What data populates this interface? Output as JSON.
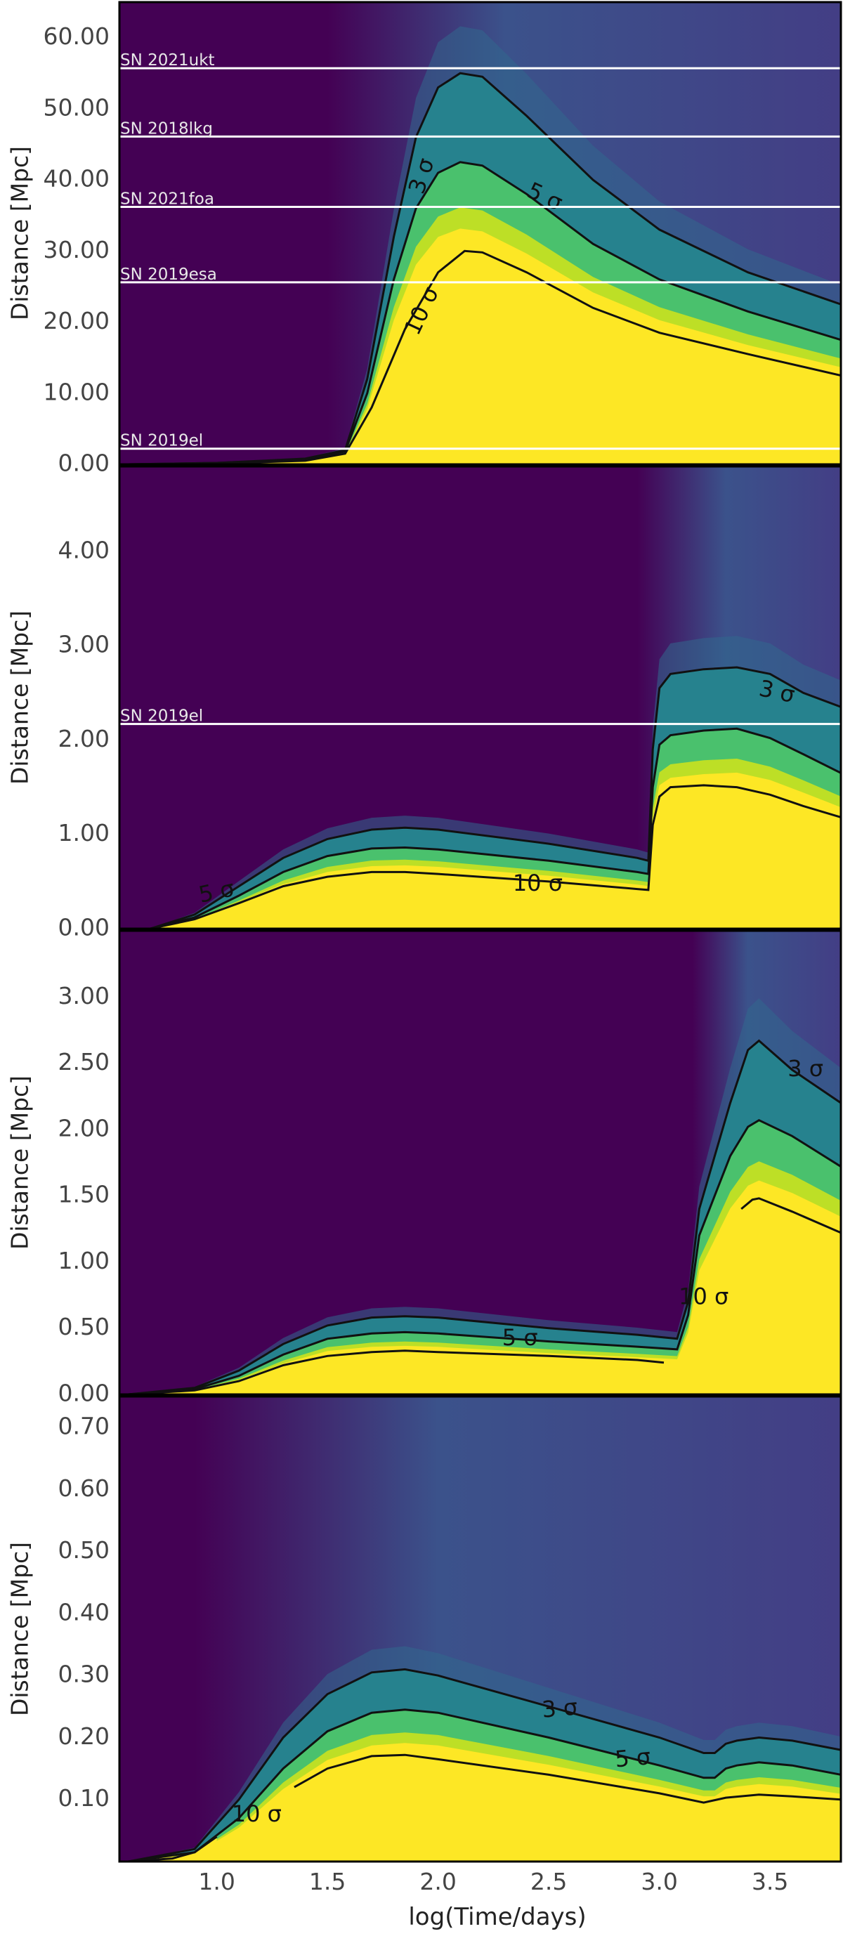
{
  "figure": {
    "xlabel": "log(Time/days)",
    "x_ticks": [
      1.0,
      1.5,
      2.0,
      2.5,
      3.0,
      3.5
    ],
    "x_tick_labels": [
      "1.0",
      "1.5",
      "2.0",
      "2.5",
      "3.0",
      "3.5"
    ],
    "colormap": [
      "#440154",
      "#3b528b",
      "#21918c",
      "#5ec962",
      "#fde725"
    ]
  },
  "chart_data": [
    {
      "type": "heatmap",
      "title": "",
      "xlabel": "log(Time/days)",
      "ylabel": "Distance [Mpc]",
      "xlim": [
        0.56,
        3.82
      ],
      "ylim": [
        0,
        65
      ],
      "y_ticks": [
        0,
        10,
        20,
        30,
        40,
        50,
        60
      ],
      "y_tick_labels": [
        "0.00",
        "10.00",
        "20.00",
        "30.00",
        "40.00",
        "50.00",
        "60.00"
      ],
      "dark_until": 1.5,
      "blend_until": 2.3,
      "far_color": "#3b528b",
      "contours": [
        {
          "label": "3 σ",
          "points": [
            [
              0.6,
              0
            ],
            [
              1.0,
              0.2
            ],
            [
              1.4,
              0.8
            ],
            [
              1.58,
              2.0
            ],
            [
              1.68,
              12
            ],
            [
              1.8,
              32
            ],
            [
              1.9,
              46
            ],
            [
              2.0,
              53
            ],
            [
              2.1,
              55
            ],
            [
              2.2,
              54.5
            ],
            [
              2.4,
              49
            ],
            [
              2.7,
              40
            ],
            [
              3.0,
              33
            ],
            [
              3.4,
              27
            ],
            [
              3.82,
              22.5
            ]
          ]
        },
        {
          "label": "5 σ",
          "points": [
            [
              0.6,
              0
            ],
            [
              1.0,
              0.2
            ],
            [
              1.4,
              0.7
            ],
            [
              1.58,
              1.8
            ],
            [
              1.68,
              10
            ],
            [
              1.8,
              26
            ],
            [
              1.9,
              36
            ],
            [
              2.0,
              41
            ],
            [
              2.1,
              42.5
            ],
            [
              2.2,
              42
            ],
            [
              2.4,
              38
            ],
            [
              2.7,
              31
            ],
            [
              3.0,
              26
            ],
            [
              3.4,
              21.5
            ],
            [
              3.82,
              17.5
            ]
          ]
        },
        {
          "label": "10 σ",
          "points": [
            [
              0.6,
              0
            ],
            [
              1.0,
              0.1
            ],
            [
              1.4,
              0.5
            ],
            [
              1.58,
              1.5
            ],
            [
              1.7,
              8
            ],
            [
              1.85,
              19
            ],
            [
              2.0,
              27
            ],
            [
              2.12,
              30
            ],
            [
              2.2,
              29.8
            ],
            [
              2.4,
              27
            ],
            [
              2.7,
              22
            ],
            [
              3.0,
              18.5
            ],
            [
              3.4,
              15.5
            ],
            [
              3.82,
              12.5
            ]
          ]
        }
      ],
      "contour_labels": [
        {
          "text": "3 σ",
          "x": 1.93,
          "y": 40.5,
          "angle": -72
        },
        {
          "text": "5 σ",
          "x": 2.48,
          "y": 37.5,
          "angle": 25
        },
        {
          "text": "10 σ",
          "x": 1.93,
          "y": 21.5,
          "angle": -65
        }
      ],
      "supernovae": [
        {
          "name": "SN 2021ukt",
          "distance": 55.7
        },
        {
          "name": "SN 2018lkg",
          "distance": 46.1
        },
        {
          "name": "SN 2021foa",
          "distance": 36.2
        },
        {
          "name": "SN 2019esa",
          "distance": 25.6
        },
        {
          "name": "SN 2019el",
          "distance": 2.2
        }
      ]
    },
    {
      "type": "heatmap",
      "title": "",
      "xlabel": "log(Time/days)",
      "ylabel": "Distance [Mpc]",
      "xlim": [
        0.56,
        3.82
      ],
      "ylim": [
        0,
        4.9
      ],
      "y_ticks": [
        0,
        1,
        2,
        3,
        4
      ],
      "y_tick_labels": [
        "0.00",
        "1.00",
        "2.00",
        "3.00",
        "4.00"
      ],
      "dark_until": 2.9,
      "blend_until": 3.3,
      "far_color": "#3b528b",
      "contours": [
        {
          "label": "3 σ",
          "points": [
            [
              0.7,
              0
            ],
            [
              0.9,
              0.15
            ],
            [
              1.1,
              0.45
            ],
            [
              1.3,
              0.75
            ],
            [
              1.5,
              0.95
            ],
            [
              1.7,
              1.05
            ],
            [
              1.85,
              1.07
            ],
            [
              2.0,
              1.05
            ],
            [
              2.5,
              0.9
            ],
            [
              2.9,
              0.75
            ],
            [
              2.95,
              0.72
            ],
            [
              2.97,
              1.9
            ],
            [
              3.0,
              2.55
            ],
            [
              3.05,
              2.7
            ],
            [
              3.2,
              2.75
            ],
            [
              3.35,
              2.77
            ],
            [
              3.5,
              2.7
            ],
            [
              3.65,
              2.5
            ],
            [
              3.82,
              2.35
            ]
          ]
        },
        {
          "label": "5 σ",
          "points": [
            [
              0.7,
              0
            ],
            [
              0.9,
              0.12
            ],
            [
              1.1,
              0.35
            ],
            [
              1.3,
              0.6
            ],
            [
              1.5,
              0.77
            ],
            [
              1.7,
              0.85
            ],
            [
              1.85,
              0.86
            ],
            [
              2.0,
              0.84
            ],
            [
              2.5,
              0.72
            ],
            [
              2.9,
              0.6
            ],
            [
              2.95,
              0.58
            ],
            [
              2.97,
              1.5
            ],
            [
              3.0,
              1.95
            ],
            [
              3.05,
              2.05
            ],
            [
              3.2,
              2.1
            ],
            [
              3.35,
              2.12
            ],
            [
              3.5,
              2.02
            ],
            [
              3.65,
              1.85
            ],
            [
              3.82,
              1.65
            ]
          ]
        },
        {
          "label": "10 σ",
          "points": [
            [
              0.7,
              0
            ],
            [
              0.9,
              0.1
            ],
            [
              1.1,
              0.27
            ],
            [
              1.3,
              0.45
            ],
            [
              1.5,
              0.55
            ],
            [
              1.7,
              0.6
            ],
            [
              1.85,
              0.6
            ],
            [
              2.0,
              0.58
            ],
            [
              2.5,
              0.5
            ],
            [
              2.9,
              0.42
            ],
            [
              2.95,
              0.41
            ],
            [
              2.97,
              1.1
            ],
            [
              3.0,
              1.4
            ],
            [
              3.05,
              1.5
            ],
            [
              3.2,
              1.52
            ],
            [
              3.35,
              1.5
            ],
            [
              3.5,
              1.42
            ],
            [
              3.65,
              1.3
            ],
            [
              3.82,
              1.18
            ]
          ]
        }
      ],
      "contour_labels": [
        {
          "text": "5 σ",
          "x": 1.0,
          "y": 0.38,
          "angle": -12
        },
        {
          "text": "10 σ",
          "x": 2.45,
          "y": 0.47,
          "angle": 0
        },
        {
          "text": "3 σ",
          "x": 3.53,
          "y": 2.5,
          "angle": 12
        }
      ],
      "supernovae": [
        {
          "name": "SN 2019el",
          "distance": 2.17
        }
      ]
    },
    {
      "type": "heatmap",
      "title": "",
      "xlabel": "log(Time/days)",
      "ylabel": "Distance [Mpc]",
      "xlim": [
        0.56,
        3.82
      ],
      "ylim": [
        0,
        3.5
      ],
      "y_ticks": [
        0,
        0.5,
        1.0,
        1.5,
        2.0,
        2.5,
        3.0
      ],
      "y_tick_labels": [
        "0.00",
        "0.50",
        "1.00",
        "1.50",
        "2.00",
        "2.50",
        "3.00"
      ],
      "dark_until": 3.15,
      "blend_until": 3.4,
      "far_color": "#3b528b",
      "contours": [
        {
          "label": "3 σ",
          "points": [
            [
              0.6,
              0
            ],
            [
              0.9,
              0.05
            ],
            [
              1.1,
              0.18
            ],
            [
              1.3,
              0.38
            ],
            [
              1.5,
              0.52
            ],
            [
              1.7,
              0.58
            ],
            [
              1.85,
              0.59
            ],
            [
              2.0,
              0.58
            ],
            [
              2.5,
              0.5
            ],
            [
              2.9,
              0.45
            ],
            [
              3.08,
              0.42
            ],
            [
              3.13,
              0.7
            ],
            [
              3.18,
              1.4
            ],
            [
              3.25,
              1.8
            ],
            [
              3.32,
              2.2
            ],
            [
              3.4,
              2.6
            ],
            [
              3.45,
              2.67
            ],
            [
              3.6,
              2.45
            ],
            [
              3.82,
              2.2
            ]
          ]
        },
        {
          "label": "5 σ",
          "points": [
            [
              0.6,
              0
            ],
            [
              0.9,
              0.04
            ],
            [
              1.1,
              0.14
            ],
            [
              1.3,
              0.3
            ],
            [
              1.5,
              0.42
            ],
            [
              1.7,
              0.46
            ],
            [
              1.85,
              0.47
            ],
            [
              2.0,
              0.46
            ],
            [
              2.5,
              0.4
            ],
            [
              2.9,
              0.36
            ],
            [
              3.08,
              0.34
            ],
            [
              3.13,
              0.6
            ],
            [
              3.18,
              1.2
            ],
            [
              3.25,
              1.5
            ],
            [
              3.32,
              1.8
            ],
            [
              3.4,
              2.02
            ],
            [
              3.45,
              2.07
            ],
            [
              3.6,
              1.95
            ],
            [
              3.82,
              1.72
            ]
          ]
        },
        {
          "label": "10 σ",
          "points": [
            [
              0.6,
              0
            ],
            [
              0.9,
              0.03
            ],
            [
              1.1,
              0.1
            ],
            [
              1.3,
              0.22
            ],
            [
              1.5,
              0.29
            ],
            [
              1.7,
              0.32
            ],
            [
              1.85,
              0.33
            ],
            [
              2.0,
              0.32
            ],
            [
              2.5,
              0.29
            ],
            [
              2.9,
              0.26
            ],
            [
              3.02,
              0.24
            ]
          ]
        },
        {
          "label": "10 σ",
          "points": [
            [
              3.37,
              1.4
            ],
            [
              3.42,
              1.47
            ],
            [
              3.45,
              1.48
            ],
            [
              3.6,
              1.38
            ],
            [
              3.82,
              1.22
            ]
          ]
        }
      ],
      "contour_labels": [
        {
          "text": "5 σ",
          "x": 2.37,
          "y": 0.42,
          "angle": 0
        },
        {
          "text": "10 σ",
          "x": 3.2,
          "y": 0.73,
          "angle": 0
        },
        {
          "text": "3 σ",
          "x": 3.66,
          "y": 2.45,
          "angle": 0
        }
      ],
      "supernovae": []
    },
    {
      "type": "heatmap",
      "title": "",
      "xlabel": "log(Time/days)",
      "ylabel": "Distance [Mpc]",
      "xlim": [
        0.56,
        3.82
      ],
      "ylim": [
        0,
        0.75
      ],
      "y_ticks": [
        0.1,
        0.2,
        0.3,
        0.4,
        0.5,
        0.6,
        0.7
      ],
      "y_tick_labels": [
        "0.10",
        "0.20",
        "0.30",
        "0.40",
        "0.50",
        "0.60",
        "0.70"
      ],
      "dark_until": 0.9,
      "blend_until": 2.0,
      "far_color": "#3b528b",
      "contours": [
        {
          "label": "3 σ",
          "points": [
            [
              0.6,
              0
            ],
            [
              0.9,
              0.02
            ],
            [
              1.1,
              0.1
            ],
            [
              1.3,
              0.2
            ],
            [
              1.5,
              0.27
            ],
            [
              1.7,
              0.305
            ],
            [
              1.85,
              0.31
            ],
            [
              2.0,
              0.3
            ],
            [
              2.5,
              0.25
            ],
            [
              3.0,
              0.2
            ],
            [
              3.2,
              0.175
            ],
            [
              3.25,
              0.175
            ],
            [
              3.3,
              0.19
            ],
            [
              3.35,
              0.195
            ],
            [
              3.45,
              0.2
            ],
            [
              3.6,
              0.195
            ],
            [
              3.82,
              0.18
            ]
          ]
        },
        {
          "label": "5 σ",
          "points": [
            [
              0.6,
              0
            ],
            [
              0.9,
              0.015
            ],
            [
              1.1,
              0.07
            ],
            [
              1.3,
              0.15
            ],
            [
              1.5,
              0.21
            ],
            [
              1.7,
              0.24
            ],
            [
              1.85,
              0.245
            ],
            [
              2.0,
              0.24
            ],
            [
              2.5,
              0.2
            ],
            [
              3.0,
              0.155
            ],
            [
              3.2,
              0.135
            ],
            [
              3.25,
              0.135
            ],
            [
              3.3,
              0.15
            ],
            [
              3.35,
              0.155
            ],
            [
              3.45,
              0.16
            ],
            [
              3.6,
              0.155
            ],
            [
              3.82,
              0.14
            ]
          ]
        },
        {
          "label": "10 σ",
          "points": [
            [
              0.6,
              0
            ],
            [
              0.8,
              0.005
            ],
            [
              0.9,
              0.015
            ],
            [
              1.0,
              0.04
            ]
          ]
        },
        {
          "label": "10 σ",
          "points": [
            [
              1.35,
              0.12
            ],
            [
              1.5,
              0.15
            ],
            [
              1.7,
              0.17
            ],
            [
              1.85,
              0.172
            ],
            [
              2.0,
              0.165
            ],
            [
              2.5,
              0.14
            ],
            [
              3.0,
              0.11
            ],
            [
              3.2,
              0.095
            ],
            [
              3.3,
              0.103
            ],
            [
              3.45,
              0.108
            ],
            [
              3.6,
              0.105
            ],
            [
              3.82,
              0.1
            ]
          ]
        }
      ],
      "contour_labels": [
        {
          "text": "10 σ",
          "x": 1.18,
          "y": 0.075,
          "angle": 0
        },
        {
          "text": "3 σ",
          "x": 2.55,
          "y": 0.245,
          "angle": -5
        },
        {
          "text": "5 σ",
          "x": 2.88,
          "y": 0.165,
          "angle": -5
        }
      ],
      "supernovae": []
    }
  ]
}
